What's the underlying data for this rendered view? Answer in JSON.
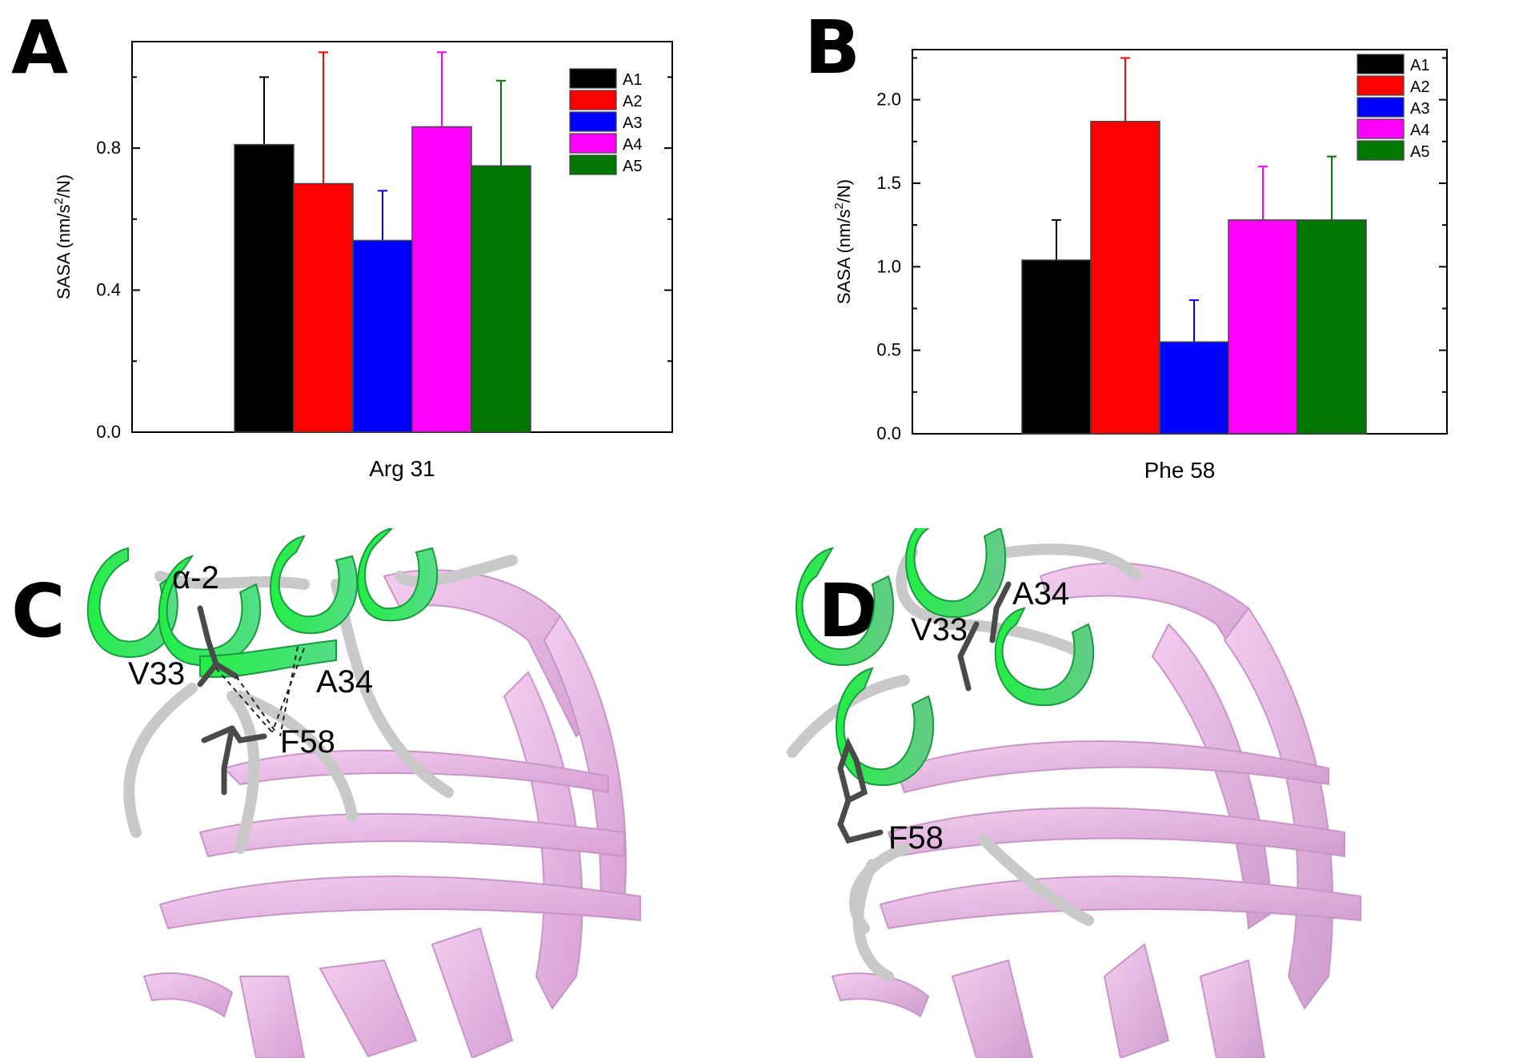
{
  "panel_labels": [
    "A",
    "B",
    "C",
    "D"
  ],
  "chart_data": [
    {
      "type": "bar",
      "panel": "A",
      "title": "",
      "xlabel": "Arg 31",
      "ylabel_main": "SASA (nm/s",
      "ylabel_sup": "2",
      "ylabel_tail": "/N)",
      "ylim": [
        0,
        1.1
      ],
      "yticks": [
        0.0,
        0.4,
        0.8
      ],
      "ytick_labels": [
        "0.0",
        "0.4",
        "0.8"
      ],
      "legend_position": "top-right",
      "series": [
        {
          "name": "A1",
          "value": 0.81,
          "error_top": 1.0,
          "color": "#000000",
          "error_color": "#000000"
        },
        {
          "name": "A2",
          "value": 0.7,
          "error_top": 1.07,
          "color": "#ff0000",
          "error_color": "#ff0000"
        },
        {
          "name": "A3",
          "value": 0.54,
          "error_top": 0.68,
          "color": "#0000ff",
          "error_color": "#0000ff"
        },
        {
          "name": "A4",
          "value": 0.86,
          "error_top": 1.07,
          "color": "#ff00ff",
          "error_color": "#ff00ff"
        },
        {
          "name": "A5",
          "value": 0.75,
          "error_top": 0.99,
          "color": "#007700",
          "error_color": "#007700"
        }
      ]
    },
    {
      "type": "bar",
      "panel": "B",
      "title": "",
      "xlabel": "Phe 58",
      "ylabel_main": "SASA (nm/s",
      "ylabel_sup": "2",
      "ylabel_tail": "/N)",
      "ylim": [
        0,
        2.3
      ],
      "yticks": [
        0.0,
        0.5,
        1.0,
        1.5,
        2.0
      ],
      "ytick_labels": [
        "0.0",
        "0.5",
        "1.0",
        "1.5",
        "2.0"
      ],
      "legend_position": "top-right",
      "series": [
        {
          "name": "A1",
          "value": 1.04,
          "error_top": 1.28,
          "color": "#000000",
          "error_color": "#000000"
        },
        {
          "name": "A2",
          "value": 1.87,
          "error_top": 2.25,
          "color": "#ff0000",
          "error_color": "#ff0000"
        },
        {
          "name": "A3",
          "value": 0.55,
          "error_top": 0.8,
          "color": "#0000ff",
          "error_color": "#0000ff"
        },
        {
          "name": "A4",
          "value": 1.28,
          "error_top": 1.6,
          "color": "#ff00ff",
          "error_color": "#ff00ff"
        },
        {
          "name": "A5",
          "value": 1.28,
          "error_top": 1.66,
          "color": "#007700",
          "error_color": "#007700"
        }
      ]
    }
  ],
  "structure_panels": [
    {
      "panel": "C",
      "labels": {
        "helix": "α-2",
        "v33": "V33",
        "a34": "A34",
        "f58": "F58"
      }
    },
    {
      "panel": "D",
      "labels": {
        "a34": "A34",
        "v33": "V33",
        "f58": "F58"
      }
    }
  ],
  "colors": {
    "helix": "#33dd66",
    "sheet": "#e9b5e6",
    "loop": "#c8c8c8",
    "sidechain": "#444444"
  }
}
